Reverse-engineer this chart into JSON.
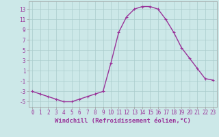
{
  "x": [
    0,
    1,
    2,
    3,
    4,
    5,
    6,
    7,
    8,
    9,
    10,
    11,
    12,
    13,
    14,
    15,
    16,
    17,
    18,
    19,
    20,
    21,
    22,
    23
  ],
  "y": [
    -3,
    -3.5,
    -4,
    -4.5,
    -5,
    -5,
    -4.5,
    -4,
    -3.5,
    -3,
    2.5,
    8.5,
    11.5,
    13,
    13.5,
    13.5,
    13,
    11,
    8.5,
    5.5,
    3.5,
    1.5,
    -0.5,
    -0.8
  ],
  "line_color": "#993399",
  "marker": "+",
  "bg_color": "#cce8e8",
  "grid_color": "#aacccc",
  "xlabel": "Windchill (Refroidissement éolien,°C)",
  "xlim": [
    -0.5,
    23.5
  ],
  "ylim": [
    -6,
    14.5
  ],
  "yticks": [
    -5,
    -3,
    -1,
    1,
    3,
    5,
    7,
    9,
    11,
    13
  ],
  "xticks": [
    0,
    1,
    2,
    3,
    4,
    5,
    6,
    7,
    8,
    9,
    10,
    11,
    12,
    13,
    14,
    15,
    16,
    17,
    18,
    19,
    20,
    21,
    22,
    23
  ],
  "tick_fontsize": 5.5,
  "xlabel_fontsize": 6.5,
  "line_width": 1.0,
  "marker_size": 3
}
